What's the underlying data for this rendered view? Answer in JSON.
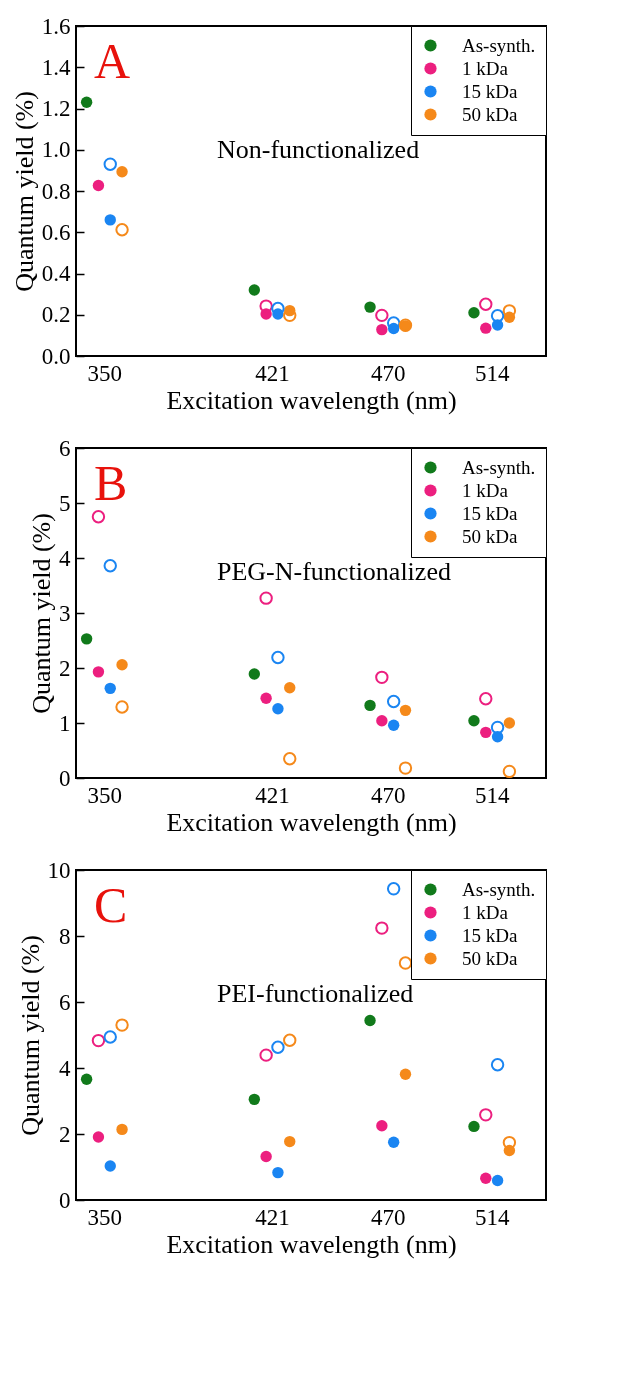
{
  "chart_data": [
    {
      "type": "scatter",
      "xlabel": "Excitation wavelength (nm)",
      "ylabel": "Quantum yield (%)",
      "annotations": [
        "A",
        "Non-functionalized"
      ],
      "xlim": [
        338,
        537
      ],
      "xticks": [
        350,
        421,
        470,
        514
      ],
      "ylim": [
        0,
        1.6
      ],
      "yticks": [
        {
          "value": 0,
          "label": "0.0"
        },
        0.2,
        0.4,
        0.6,
        0.8,
        {
          "value": 1,
          "label": "1.0"
        },
        1.2,
        1.4,
        1.6
      ],
      "legend": "top right",
      "marker": "circle",
      "series": [
        {
          "name": "As-synth.",
          "color": "#117a1b",
          "x": [
            342.5,
            413.5,
            462.5,
            506.5
          ],
          "values": [
            1.23,
            0.32,
            0.237,
            0.21
          ]
        },
        {
          "name": "1 kDa",
          "color": "#ec1f7f",
          "x": [
            347.5,
            418.5,
            467.5,
            511.5
          ],
          "values": [
            0.827,
            0.204,
            0.128,
            0.135
          ]
        },
        {
          "name": "15 kDa",
          "color": "#1a85f2",
          "x": [
            352.5,
            423.5,
            472.5,
            516.5
          ],
          "values": [
            0.66,
            0.204,
            0.133,
            0.15
          ]
        },
        {
          "name": "50 kDa",
          "color": "#f5891a",
          "x": [
            357.5,
            428.5,
            477.5,
            521.5
          ],
          "values": [
            0.893,
            0.22,
            0.146,
            0.188
          ]
        },
        {
          "color": "#ec1f7f",
          "x": [
            null,
            418.5,
            467.5,
            511.5
          ],
          "values": [
            null,
            0.242,
            0.197,
            0.251
          ]
        },
        {
          "color": "#1a85f2",
          "x": [
            352.5,
            423.5,
            472.5,
            516.5
          ],
          "values": [
            0.93,
            0.23,
            0.16,
            0.195
          ]
        },
        {
          "color": "#f5891a",
          "x": [
            357.5,
            428.5,
            477.5,
            521.5
          ],
          "values": [
            0.612,
            0.197,
            0.149,
            0.219
          ]
        }
      ]
    },
    {
      "type": "scatter",
      "xlabel": "Excitation wavelength (nm)",
      "ylabel": "Quantum yield (%)",
      "annotations": [
        "B",
        "PEG-N-functionalized"
      ],
      "xlim": [
        338,
        537
      ],
      "xticks": [
        350,
        421,
        470,
        514
      ],
      "ylim": [
        0,
        6
      ],
      "yticks": [
        0,
        1,
        2,
        3,
        4,
        5,
        6
      ],
      "legend": "top right",
      "marker": "circle",
      "series": [
        {
          "name": "As-synth.",
          "color": "#117a1b",
          "x": [
            342.5,
            413.5,
            462.5,
            506.5
          ],
          "values": [
            2.53,
            1.89,
            1.32,
            1.04
          ]
        },
        {
          "name": "1 kDa",
          "color": "#ec1f7f",
          "x": [
            347.5,
            418.5,
            467.5,
            511.5
          ],
          "values": [
            1.93,
            1.45,
            1.04,
            0.83
          ]
        },
        {
          "name": "15 kDa",
          "color": "#1a85f2",
          "x": [
            352.5,
            423.5,
            472.5,
            516.5
          ],
          "values": [
            1.63,
            1.26,
            0.96,
            0.75
          ]
        },
        {
          "name": "50 kDa",
          "color": "#f5891a",
          "x": [
            357.5,
            428.5,
            477.5,
            521.5
          ],
          "values": [
            2.06,
            1.64,
            1.23,
            1.0
          ]
        },
        {
          "color": "#ec1f7f",
          "x": [
            347.5,
            418.5,
            467.5,
            511.5
          ],
          "values": [
            4.75,
            3.27,
            1.83,
            1.44
          ]
        },
        {
          "color": "#1a85f2",
          "x": [
            352.5,
            423.5,
            472.5,
            516.5
          ],
          "values": [
            3.86,
            2.19,
            1.39,
            0.92
          ]
        },
        {
          "color": "#f5891a",
          "x": [
            357.5,
            428.5,
            477.5,
            521.5
          ],
          "values": [
            1.29,
            0.35,
            0.18,
            0.12
          ]
        }
      ]
    },
    {
      "type": "scatter",
      "xlabel": "Excitation wavelength (nm)",
      "ylabel": "Quantum yield (%)",
      "annotations": [
        "C",
        "PEI-functionalized"
      ],
      "xlim": [
        338,
        537
      ],
      "xticks": [
        350,
        421,
        470,
        514
      ],
      "ylim": [
        0,
        10
      ],
      "yticks": [
        0,
        2,
        4,
        6,
        8,
        10
      ],
      "legend": "top right",
      "marker": "circle",
      "series": [
        {
          "name": "As-synth.",
          "color": "#117a1b",
          "x": [
            342.5,
            413.5,
            462.5,
            506.5
          ],
          "values": [
            3.66,
            3.05,
            5.44,
            2.23
          ]
        },
        {
          "name": "1 kDa",
          "color": "#ec1f7f",
          "x": [
            347.5,
            418.5,
            467.5,
            511.5
          ],
          "values": [
            1.91,
            1.32,
            2.25,
            0.66
          ]
        },
        {
          "name": "15 kDa",
          "color": "#1a85f2",
          "x": [
            352.5,
            423.5,
            472.5,
            516.5
          ],
          "values": [
            1.03,
            0.83,
            1.75,
            0.59
          ]
        },
        {
          "name": "50 kDa",
          "color": "#f5891a",
          "x": [
            357.5,
            428.5,
            477.5,
            521.5
          ],
          "values": [
            2.14,
            1.77,
            3.81,
            1.5
          ]
        },
        {
          "color": "#ec1f7f",
          "x": [
            347.5,
            418.5,
            467.5,
            511.5
          ],
          "values": [
            4.83,
            4.39,
            8.24,
            2.58
          ]
        },
        {
          "color": "#1a85f2",
          "x": [
            352.5,
            423.5,
            472.5,
            516.5
          ],
          "values": [
            4.94,
            4.63,
            9.43,
            4.1
          ]
        },
        {
          "color": "#f5891a",
          "x": [
            357.5,
            428.5,
            477.5,
            521.5
          ],
          "values": [
            5.3,
            4.84,
            7.18,
            1.74
          ]
        }
      ]
    }
  ]
}
